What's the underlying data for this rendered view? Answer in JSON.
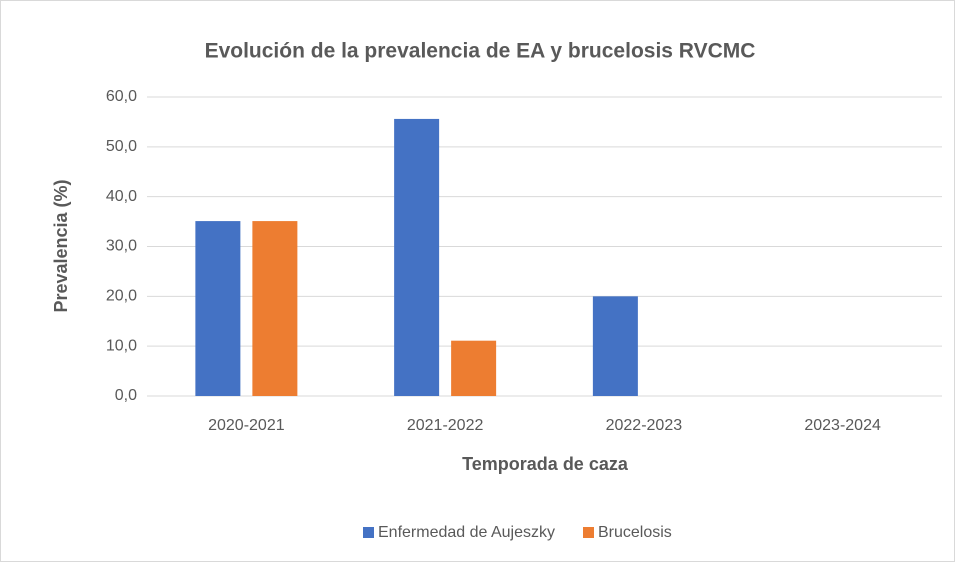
{
  "chart_data": {
    "type": "bar",
    "title": "Evolución de la prevalencia de EA y brucelosis RVCMC",
    "x_label": "Temporada de caza",
    "y_label": "Prevalencia (%)",
    "categories": [
      "2020-2021",
      "2021-2022",
      "2022-2023",
      "2023-2024"
    ],
    "series": [
      {
        "name": "Enfermedad de Aujeszky",
        "color": "#4472c4",
        "values": [
          35.1,
          55.6,
          20.0,
          0
        ]
      },
      {
        "name": "Brucelosis",
        "color": "#ed7d31",
        "values": [
          35.1,
          11.1,
          0,
          0
        ]
      }
    ],
    "ylim": [
      0,
      60
    ],
    "yticks": [
      {
        "value": 0,
        "label": "0,0"
      },
      {
        "value": 10,
        "label": "10,0"
      },
      {
        "value": 20,
        "label": "20,0"
      },
      {
        "value": 30,
        "label": "30,0"
      },
      {
        "value": 40,
        "label": "40,0"
      },
      {
        "value": 50,
        "label": "50,0"
      },
      {
        "value": 60,
        "label": "60,0"
      }
    ],
    "grid": true,
    "legend": "bottom"
  }
}
